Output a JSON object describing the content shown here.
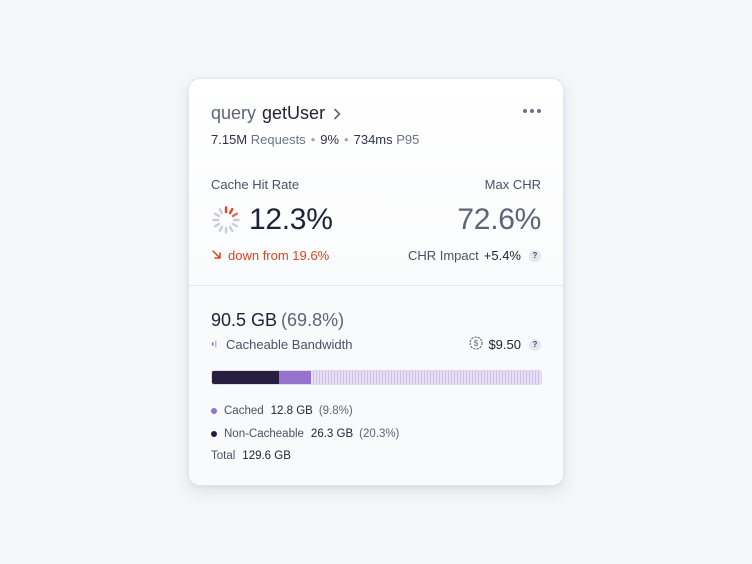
{
  "card": {
    "title": {
      "keyword": "query",
      "name": "getUser"
    },
    "meta": {
      "requests_value": "7.15M",
      "requests_label": "Requests",
      "percent": "9%",
      "p95_value": "734ms",
      "p95_label": "P95"
    },
    "cache_hit_rate": {
      "label": "Cache Hit Rate",
      "value": "12.3%",
      "trend": "down from 19.6%"
    },
    "max_chr": {
      "label": "Max CHR",
      "value": "72.6%",
      "impact_label": "CHR Impact",
      "impact_value": "+5.4%"
    },
    "bandwidth": {
      "value": "90.5 GB",
      "percent": "(69.8%)",
      "label": "Cacheable Bandwidth",
      "cost": "$9.50"
    },
    "usage_bar": {
      "non_cacheable_fraction": 0.203,
      "cached_fraction": 0.098
    },
    "legend": {
      "cached": {
        "label": "Cached",
        "value": "12.8 GB",
        "percent": "(9.8%)",
        "color": "#9472cd"
      },
      "non_cacheable": {
        "label": "Non-Cacheable",
        "value": "26.3 GB",
        "percent": "(20.3%)",
        "color": "#261d40"
      },
      "total": {
        "label": "Total",
        "value": "129.6 GB"
      }
    },
    "icons": {
      "help": "?",
      "down_arrow": "arrow-down-right-icon"
    },
    "colors": {
      "accent": "#9472cd",
      "negative": "#e0431f",
      "dark": "#261d40"
    }
  }
}
